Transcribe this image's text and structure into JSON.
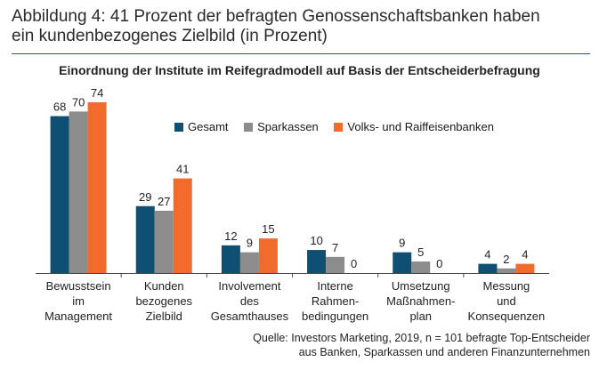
{
  "heading": {
    "line1": "Abbildung 4: 41 Prozent der befragten Genossenschaftsbanken haben",
    "line2": "ein kundenbezogenes Zielbild (in Prozent)"
  },
  "chart_data": {
    "type": "bar",
    "title": "Einordnung der Institute im Reifegradmodell auf Basis der Entscheiderbefragung",
    "categories": [
      [
        "Bewusstsein",
        "im",
        "Management"
      ],
      [
        "Kunden",
        "bezogenes",
        "Zielbild"
      ],
      [
        "Involvement",
        "des",
        "Gesamthauses"
      ],
      [
        "Interne",
        "Rahmen-",
        "bedingungen"
      ],
      [
        "Umsetzung",
        "Maßnahmen-",
        "plan"
      ],
      [
        "Messung",
        "und",
        "Konsequenzen"
      ]
    ],
    "series": [
      {
        "name": "Gesamt",
        "color": "#0f4f73",
        "values": [
          68,
          29,
          12,
          10,
          9,
          4
        ]
      },
      {
        "name": "Sparkassen",
        "color": "#8c8c8c",
        "values": [
          70,
          27,
          9,
          7,
          5,
          2
        ]
      },
      {
        "name": "Volks- und Raiffeisenbanken",
        "color": "#f26b2a",
        "values": [
          74,
          41,
          15,
          0,
          0,
          4
        ]
      }
    ],
    "ylim": [
      0,
      80
    ],
    "grid": false,
    "legend_position": "top-right"
  },
  "source": {
    "line1": "Quelle: Investors Marketing, 2019, n = 101 befragte Top-Entscheider",
    "line2": "aus Banken, Sparkassen und anderen Finanzunternehmen"
  }
}
